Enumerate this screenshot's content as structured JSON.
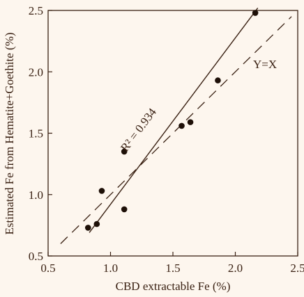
{
  "chart_data": {
    "type": "scatter",
    "xlabel": "CBD extractable Fe (%)",
    "ylabel": "Estimated Fe from Hematite+Goethite (%)",
    "xlim": [
      0.5,
      2.5
    ],
    "ylim": [
      0.5,
      2.5
    ],
    "xticks": [
      "0.5",
      "1.0",
      "1.5",
      "2.0",
      "2.5"
    ],
    "yticks": [
      "0.5",
      "1.0",
      "1.5",
      "2.0",
      "2.5"
    ],
    "grid": false,
    "points": [
      {
        "x": 0.82,
        "y": 0.73
      },
      {
        "x": 0.89,
        "y": 0.76
      },
      {
        "x": 0.93,
        "y": 1.03
      },
      {
        "x": 1.11,
        "y": 0.88
      },
      {
        "x": 1.11,
        "y": 1.35
      },
      {
        "x": 1.57,
        "y": 1.56
      },
      {
        "x": 1.64,
        "y": 1.59
      },
      {
        "x": 1.86,
        "y": 1.93
      },
      {
        "x": 2.16,
        "y": 2.48
      }
    ],
    "regression_line": {
      "style": "solid",
      "label": "R² = 0.934",
      "x": [
        0.83,
        2.18
      ],
      "y": [
        0.69,
        2.52
      ]
    },
    "identity_line": {
      "style": "dashed",
      "label": "Y=X",
      "x": [
        0.6,
        2.45
      ],
      "y": [
        0.6,
        2.45
      ]
    },
    "colors": {
      "ink": "#3a2113",
      "background": "#fdf6ee"
    }
  }
}
